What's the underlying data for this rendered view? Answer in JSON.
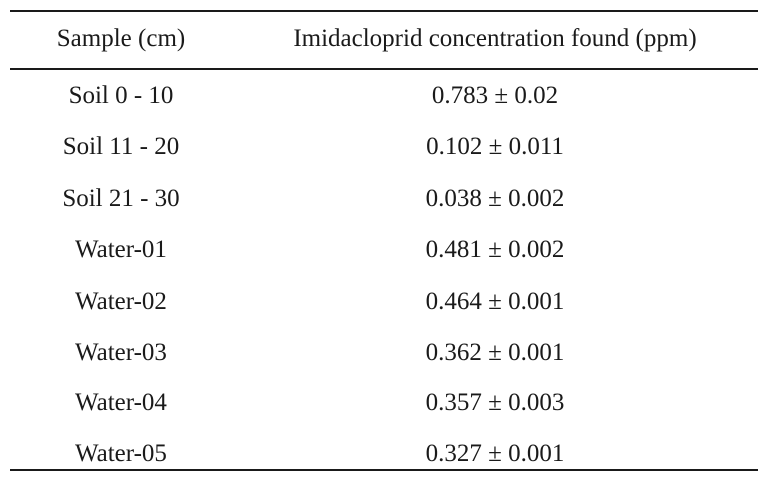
{
  "table": {
    "headers": {
      "sample": "Sample (cm)",
      "concentration": "Imidacloprid concentration found (ppm)"
    },
    "rows": [
      {
        "sample": "Soil 0 - 10",
        "concentration": "0.783 ± 0.02"
      },
      {
        "sample": "Soil 11 - 20",
        "concentration": "0.102 ± 0.011"
      },
      {
        "sample": "Soil 21 - 30",
        "concentration": "0.038 ± 0.002"
      },
      {
        "sample": "Water-01",
        "concentration": "0.481 ± 0.002"
      },
      {
        "sample": "Water-02",
        "concentration": "0.464 ± 0.001"
      },
      {
        "sample": "Water-03",
        "concentration": "0.362 ± 0.001"
      },
      {
        "sample": "Water-04",
        "concentration": "0.357 ± 0.003"
      },
      {
        "sample": "Water-05",
        "concentration": "0.327 ± 0.001"
      }
    ]
  }
}
